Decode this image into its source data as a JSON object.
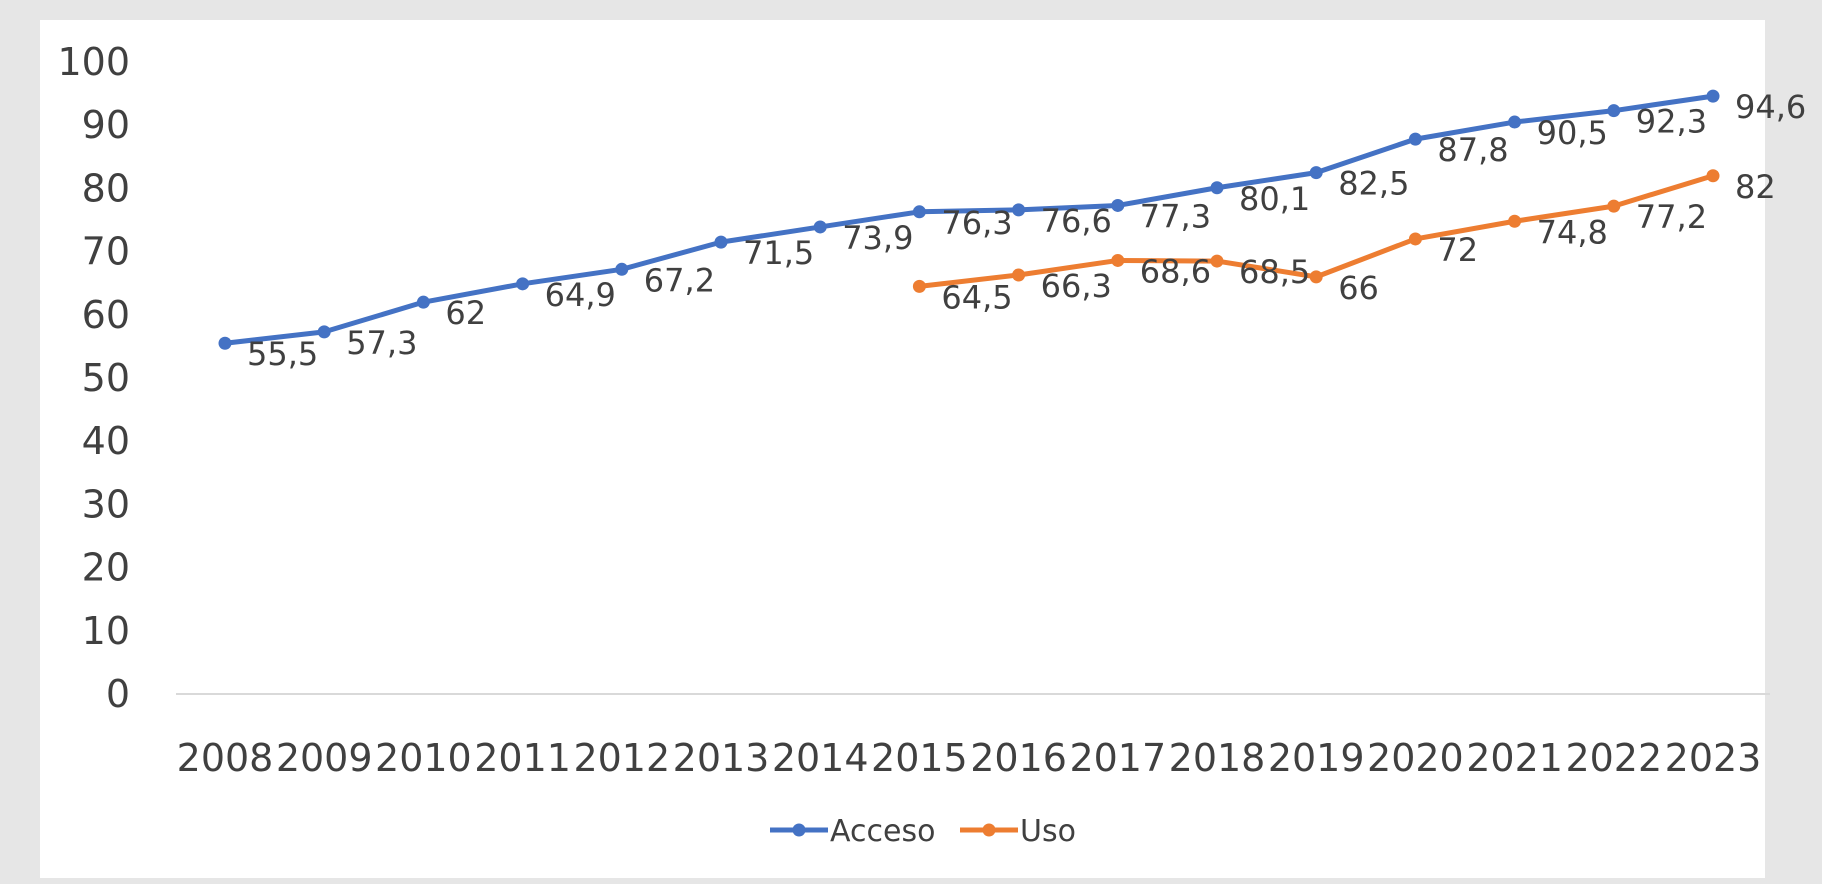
{
  "chart_data": {
    "type": "line",
    "x": [
      "2008",
      "2009",
      "2010",
      "2011",
      "2012",
      "2013",
      "2014",
      "2015",
      "2016",
      "2017",
      "2018",
      "2019",
      "2020",
      "2021",
      "2022",
      "2023"
    ],
    "ylim": [
      0,
      100
    ],
    "y_ticks": [
      "0",
      "10",
      "20",
      "30",
      "40",
      "50",
      "60",
      "70",
      "80",
      "90",
      "100"
    ],
    "grid": false,
    "legend_position": "bottom-center",
    "series": [
      {
        "name": "Acceso",
        "color": "#4472c4",
        "values": [
          55.5,
          57.3,
          62,
          64.9,
          67.2,
          71.5,
          73.9,
          76.3,
          76.6,
          77.3,
          80.1,
          82.5,
          87.8,
          90.5,
          92.3,
          94.6
        ],
        "labels": [
          "55,5",
          "57,3",
          "62",
          "64,9",
          "67,2",
          "71,5",
          "73,9",
          "76,3",
          "76,6",
          "77,3",
          "80,1",
          "82,5",
          "87,8",
          "90,5",
          "92,3",
          "94,6"
        ]
      },
      {
        "name": "Uso",
        "color": "#ed7d31",
        "values": [
          null,
          null,
          null,
          null,
          null,
          null,
          null,
          64.5,
          66.3,
          68.6,
          68.5,
          66,
          72,
          74.8,
          77.2,
          82
        ],
        "labels": [
          null,
          null,
          null,
          null,
          null,
          null,
          null,
          "64,5",
          "66,3",
          "68,6",
          "68,5",
          "66",
          "72",
          "74,8",
          "77,2",
          "82"
        ]
      }
    ]
  }
}
